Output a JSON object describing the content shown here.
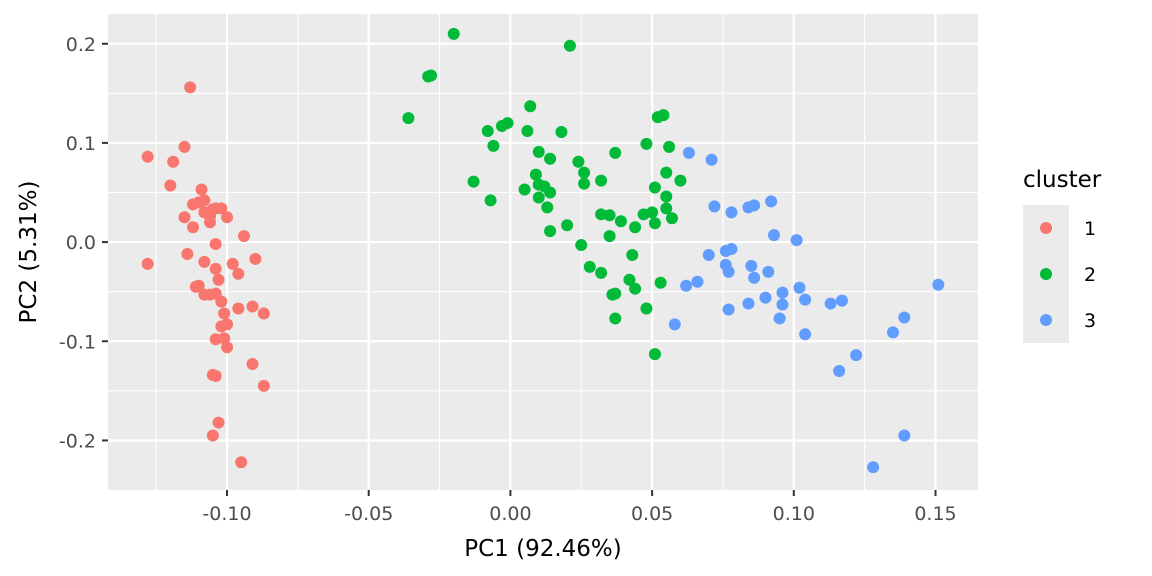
{
  "chart_data": {
    "type": "scatter",
    "title": "",
    "xlabel": "PC1 (92.46%)",
    "ylabel": "PC2 (5.31%)",
    "xlim": [
      -0.142,
      0.165
    ],
    "ylim": [
      -0.25,
      0.23
    ],
    "x_ticks": [
      -0.1,
      -0.05,
      0.0,
      0.05,
      0.1,
      0.15
    ],
    "x_tick_labels": [
      "-0.10",
      "-0.05",
      "0.00",
      "0.05",
      "0.10",
      "0.15"
    ],
    "y_ticks": [
      -0.2,
      -0.1,
      0.0,
      0.1,
      0.2
    ],
    "y_tick_labels": [
      "-0.2",
      "-0.1",
      "0.0",
      "0.1",
      "0.2"
    ],
    "grid": true,
    "legend": {
      "title": "cluster",
      "position": "right"
    },
    "series": [
      {
        "name": "1",
        "color": "#F8766D",
        "points": [
          [
            -0.113,
            0.156
          ],
          [
            -0.128,
            0.086
          ],
          [
            -0.119,
            0.081
          ],
          [
            -0.115,
            0.096
          ],
          [
            -0.12,
            0.057
          ],
          [
            -0.109,
            0.053
          ],
          [
            -0.112,
            0.038
          ],
          [
            -0.11,
            0.04
          ],
          [
            -0.108,
            0.042
          ],
          [
            -0.104,
            0.034
          ],
          [
            -0.102,
            0.034
          ],
          [
            -0.105,
            0.033
          ],
          [
            -0.108,
            0.03
          ],
          [
            -0.115,
            0.025
          ],
          [
            -0.106,
            0.026
          ],
          [
            -0.1,
            0.025
          ],
          [
            -0.112,
            0.015
          ],
          [
            -0.106,
            0.02
          ],
          [
            -0.094,
            0.006
          ],
          [
            -0.104,
            -0.002
          ],
          [
            -0.128,
            -0.022
          ],
          [
            -0.114,
            -0.012
          ],
          [
            -0.108,
            -0.02
          ],
          [
            -0.098,
            -0.022
          ],
          [
            -0.09,
            -0.017
          ],
          [
            -0.104,
            -0.027
          ],
          [
            -0.096,
            -0.032
          ],
          [
            -0.103,
            -0.038
          ],
          [
            -0.111,
            -0.045
          ],
          [
            -0.108,
            -0.053
          ],
          [
            -0.106,
            -0.053
          ],
          [
            -0.104,
            -0.052
          ],
          [
            -0.11,
            -0.044
          ],
          [
            -0.102,
            -0.06
          ],
          [
            -0.096,
            -0.067
          ],
          [
            -0.091,
            -0.065
          ],
          [
            -0.087,
            -0.072
          ],
          [
            -0.101,
            -0.072
          ],
          [
            -0.102,
            -0.085
          ],
          [
            -0.1,
            -0.083
          ],
          [
            -0.101,
            -0.097
          ],
          [
            -0.104,
            -0.098
          ],
          [
            -0.1,
            -0.106
          ],
          [
            -0.091,
            -0.123
          ],
          [
            -0.105,
            -0.134
          ],
          [
            -0.104,
            -0.135
          ],
          [
            -0.087,
            -0.145
          ],
          [
            -0.103,
            -0.182
          ],
          [
            -0.105,
            -0.195
          ],
          [
            -0.095,
            -0.222
          ]
        ]
      },
      {
        "name": "2",
        "color": "#00BA38",
        "points": [
          [
            -0.02,
            0.21
          ],
          [
            0.021,
            0.198
          ],
          [
            -0.029,
            0.167
          ],
          [
            -0.028,
            0.168
          ],
          [
            -0.036,
            0.125
          ],
          [
            0.007,
            0.137
          ],
          [
            0.054,
            0.128
          ],
          [
            0.052,
            0.126
          ],
          [
            -0.003,
            0.117
          ],
          [
            -0.001,
            0.12
          ],
          [
            -0.008,
            0.112
          ],
          [
            0.006,
            0.112
          ],
          [
            0.018,
            0.111
          ],
          [
            0.048,
            0.099
          ],
          [
            0.056,
            0.096
          ],
          [
            -0.006,
            0.097
          ],
          [
            0.01,
            0.091
          ],
          [
            0.037,
            0.09
          ],
          [
            0.014,
            0.084
          ],
          [
            0.024,
            0.081
          ],
          [
            0.026,
            0.07
          ],
          [
            0.055,
            0.07
          ],
          [
            0.009,
            0.068
          ],
          [
            0.06,
            0.062
          ],
          [
            -0.013,
            0.061
          ],
          [
            0.032,
            0.062
          ],
          [
            0.026,
            0.059
          ],
          [
            0.01,
            0.058
          ],
          [
            0.012,
            0.056
          ],
          [
            0.051,
            0.055
          ],
          [
            0.005,
            0.053
          ],
          [
            0.014,
            0.05
          ],
          [
            0.01,
            0.045
          ],
          [
            0.055,
            0.046
          ],
          [
            -0.007,
            0.042
          ],
          [
            0.013,
            0.035
          ],
          [
            0.055,
            0.034
          ],
          [
            0.032,
            0.028
          ],
          [
            0.05,
            0.03
          ],
          [
            0.047,
            0.028
          ],
          [
            0.057,
            0.024
          ],
          [
            0.035,
            0.027
          ],
          [
            0.039,
            0.021
          ],
          [
            0.051,
            0.019
          ],
          [
            0.02,
            0.017
          ],
          [
            0.044,
            0.015
          ],
          [
            0.014,
            0.011
          ],
          [
            0.035,
            0.006
          ],
          [
            0.025,
            -0.003
          ],
          [
            0.043,
            -0.013
          ],
          [
            0.028,
            -0.025
          ],
          [
            0.032,
            -0.031
          ],
          [
            0.042,
            -0.038
          ],
          [
            0.053,
            -0.041
          ],
          [
            0.044,
            -0.047
          ],
          [
            0.036,
            -0.053
          ],
          [
            0.037,
            -0.052
          ],
          [
            0.048,
            -0.067
          ],
          [
            0.037,
            -0.077
          ],
          [
            0.051,
            -0.113
          ]
        ]
      },
      {
        "name": "3",
        "color": "#619CFF",
        "points": [
          [
            0.063,
            0.09
          ],
          [
            0.071,
            0.083
          ],
          [
            0.092,
            0.041
          ],
          [
            0.086,
            0.037
          ],
          [
            0.084,
            0.035
          ],
          [
            0.072,
            0.036
          ],
          [
            0.078,
            0.03
          ],
          [
            0.093,
            0.007
          ],
          [
            0.101,
            0.002
          ],
          [
            0.078,
            -0.007
          ],
          [
            0.076,
            -0.009
          ],
          [
            0.07,
            -0.013
          ],
          [
            0.076,
            -0.023
          ],
          [
            0.085,
            -0.024
          ],
          [
            0.077,
            -0.03
          ],
          [
            0.091,
            -0.03
          ],
          [
            0.086,
            -0.036
          ],
          [
            0.066,
            -0.04
          ],
          [
            0.062,
            -0.044
          ],
          [
            0.102,
            -0.046
          ],
          [
            0.151,
            -0.043
          ],
          [
            0.096,
            -0.051
          ],
          [
            0.09,
            -0.056
          ],
          [
            0.104,
            -0.058
          ],
          [
            0.117,
            -0.059
          ],
          [
            0.113,
            -0.062
          ],
          [
            0.084,
            -0.062
          ],
          [
            0.096,
            -0.063
          ],
          [
            0.077,
            -0.068
          ],
          [
            0.095,
            -0.077
          ],
          [
            0.139,
            -0.076
          ],
          [
            0.058,
            -0.083
          ],
          [
            0.135,
            -0.091
          ],
          [
            0.104,
            -0.093
          ],
          [
            0.122,
            -0.114
          ],
          [
            0.116,
            -0.13
          ],
          [
            0.139,
            -0.195
          ],
          [
            0.128,
            -0.227
          ]
        ]
      }
    ]
  }
}
